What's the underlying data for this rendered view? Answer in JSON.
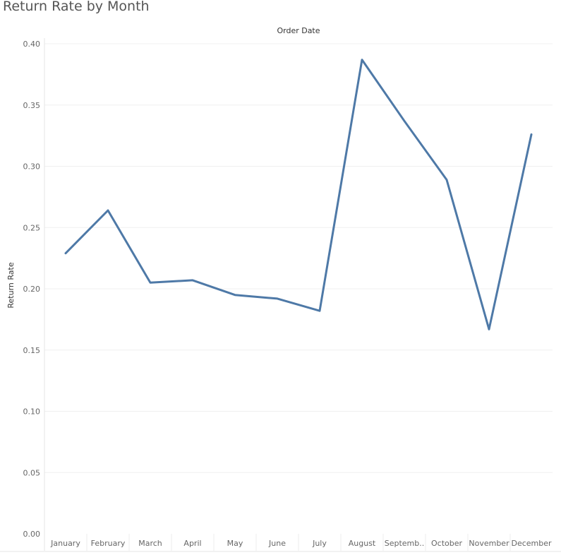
{
  "chart_data": {
    "type": "line",
    "title": "Return Rate by Month",
    "column_header": "Order Date",
    "ylabel": "Return Rate",
    "xlabel": "",
    "categories": [
      "January",
      "February",
      "March",
      "April",
      "May",
      "June",
      "July",
      "August",
      "Septemb..",
      "October",
      "November",
      "December"
    ],
    "series": [
      {
        "values": [
          0.229,
          0.264,
          0.205,
          0.207,
          0.195,
          0.192,
          0.182,
          0.387,
          0.337,
          0.289,
          0.167,
          0.326
        ]
      }
    ],
    "yticks": [
      "0.00",
      "0.05",
      "0.10",
      "0.15",
      "0.20",
      "0.25",
      "0.30",
      "0.35",
      "0.40"
    ],
    "ylim": [
      0,
      0.4
    ],
    "grid": true,
    "line_color": "#4e79a7",
    "grid_color": "#f0f0f0"
  }
}
